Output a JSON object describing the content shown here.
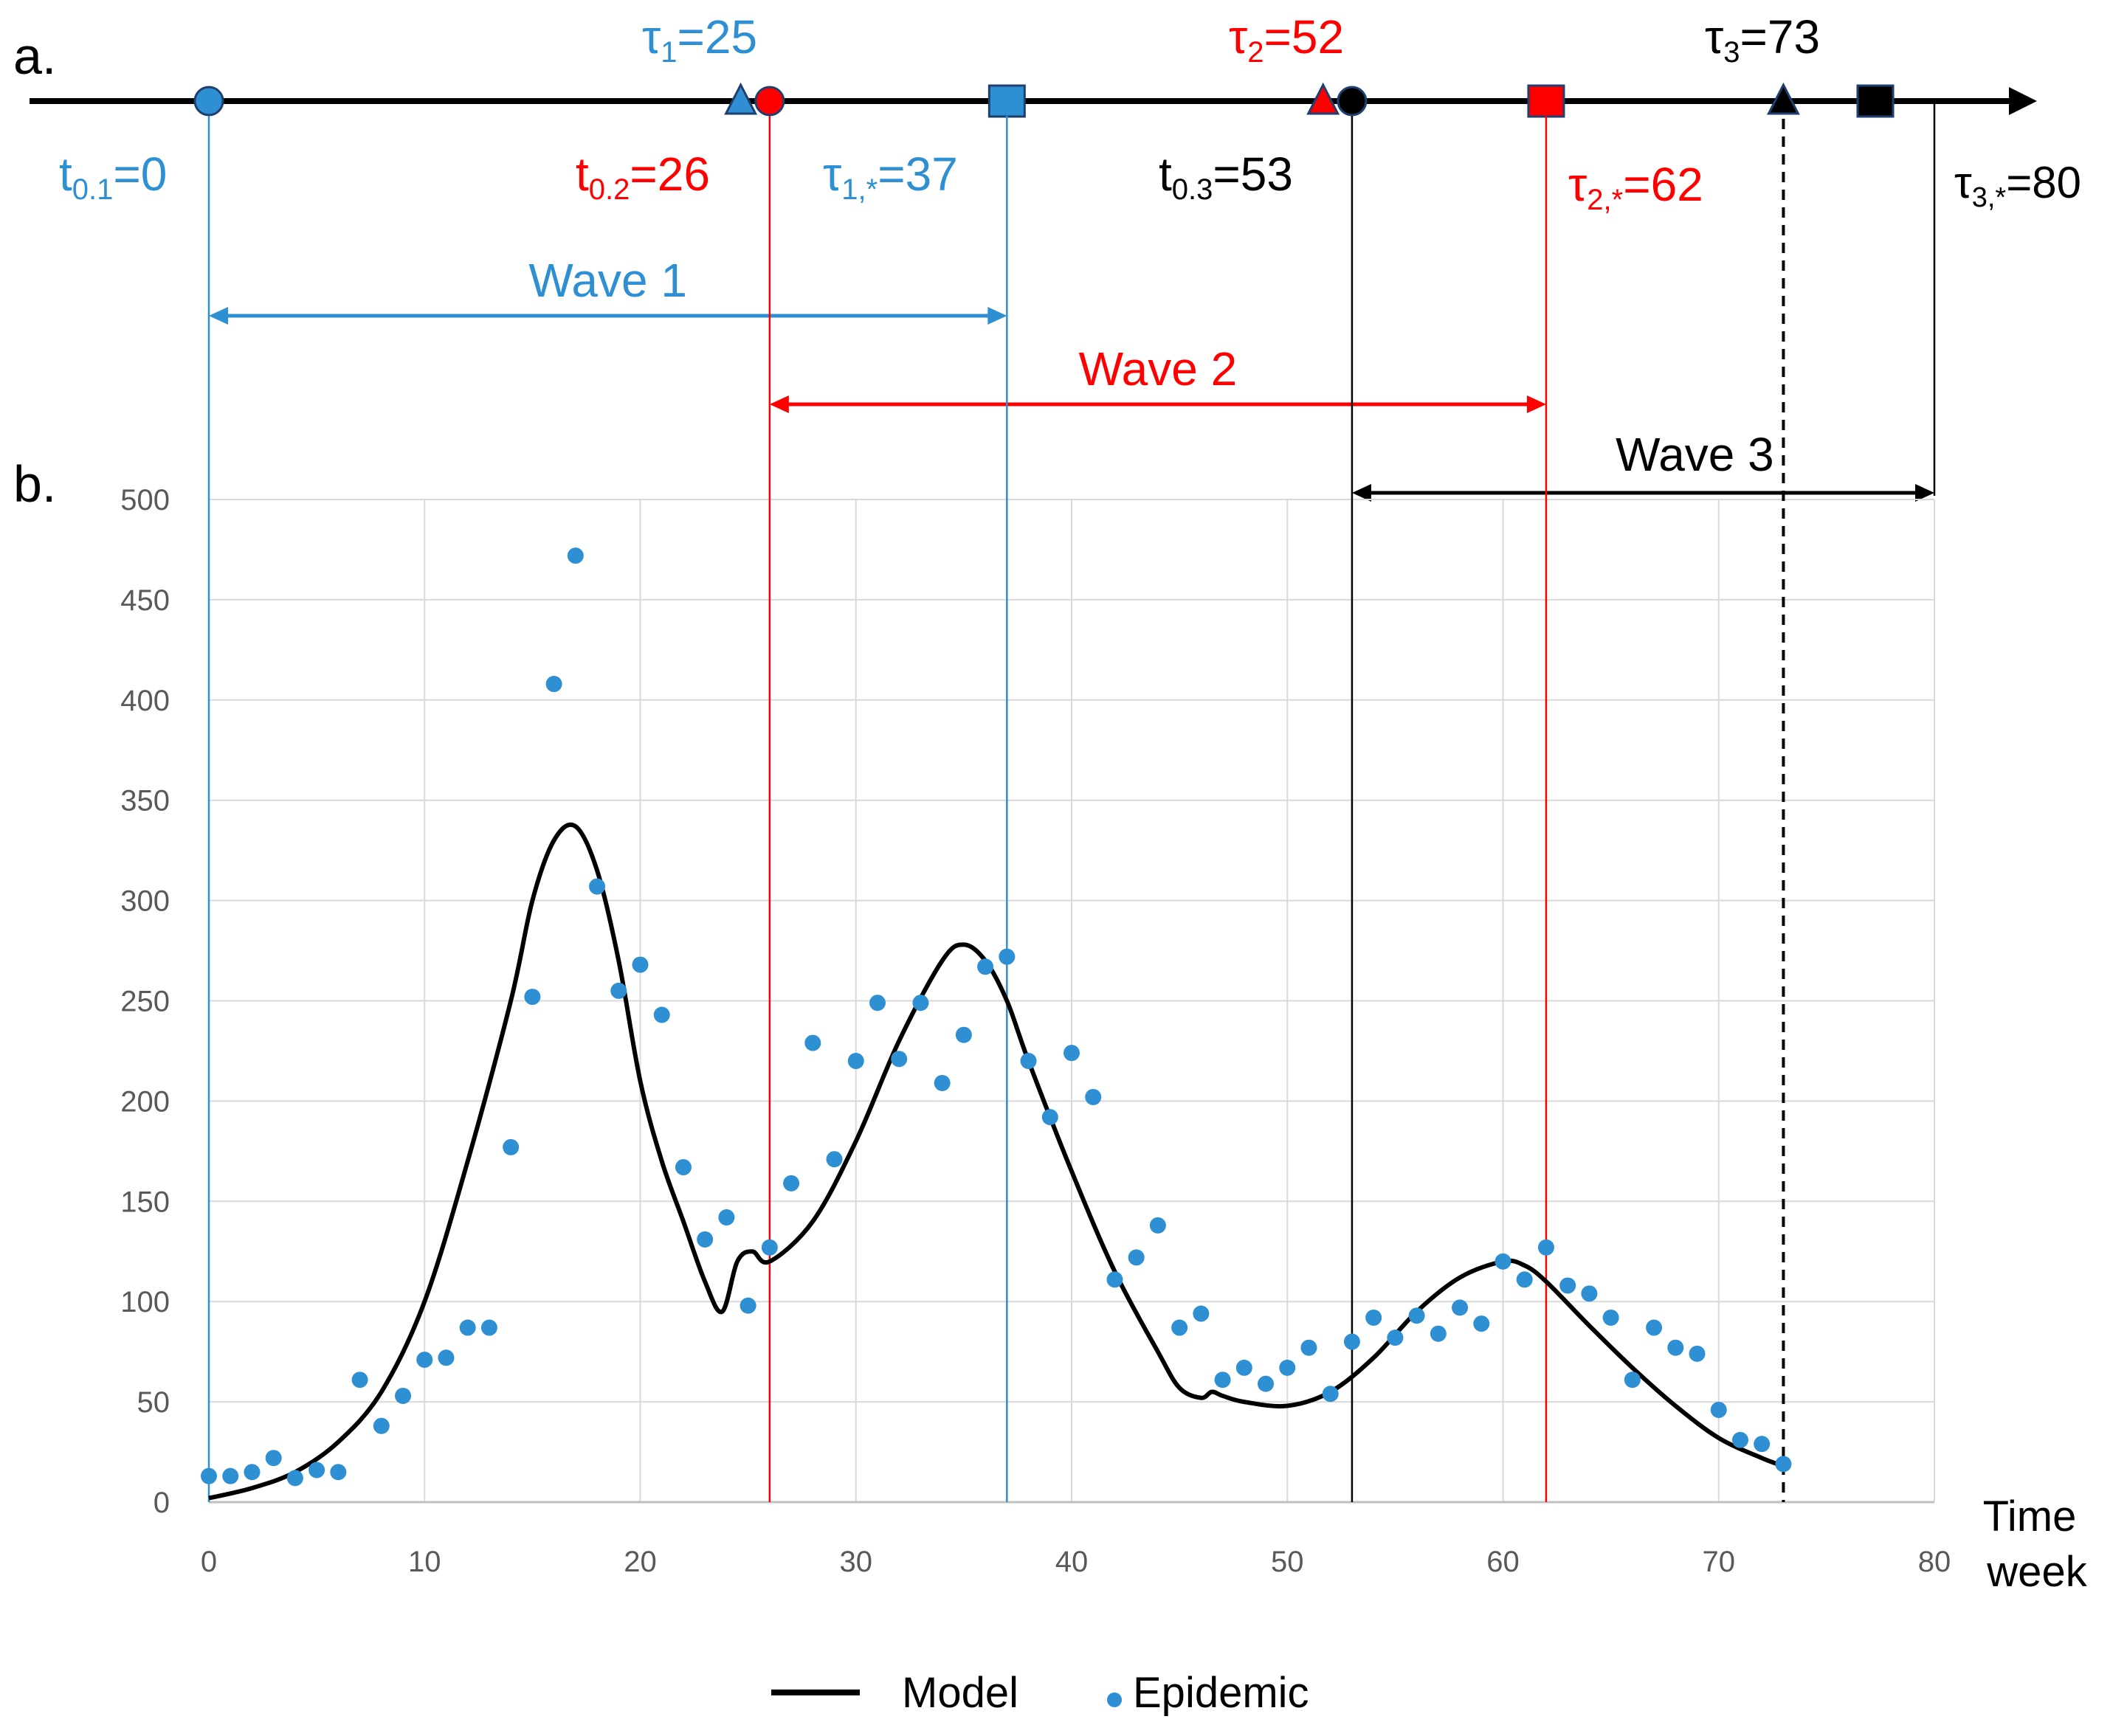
{
  "colors": {
    "blue": "#2E8FD3",
    "red": "#FF0000",
    "black": "#000000",
    "grid": "#D9D9D9",
    "tick_text": "#595959"
  },
  "panel_labels": {
    "a": "a.",
    "b": "b."
  },
  "timeline": {
    "markers": [
      {
        "name": "t-0-1",
        "shape": "circle",
        "t": 0,
        "color": "blue"
      },
      {
        "name": "tau-1",
        "shape": "triangle",
        "t": 25,
        "color": "blue"
      },
      {
        "name": "t-0-2",
        "shape": "circle",
        "t": 26,
        "color": "red"
      },
      {
        "name": "tau-1-star",
        "shape": "square",
        "t": 37,
        "color": "blue"
      },
      {
        "name": "tau-2",
        "shape": "triangle",
        "t": 52,
        "color": "red"
      },
      {
        "name": "t-0-3",
        "shape": "circle",
        "t": 53,
        "color": "black"
      },
      {
        "name": "tau-2-star",
        "shape": "square",
        "t": 62,
        "color": "red"
      },
      {
        "name": "tau-3",
        "shape": "triangle",
        "t": 73,
        "color": "black"
      },
      {
        "name": "tau-3-star",
        "shape": "square",
        "t": 80,
        "color": "black"
      }
    ],
    "labels": {
      "tau1": {
        "sym": "τ",
        "sub": "1",
        "val": "=25"
      },
      "tau2": {
        "sym": "τ",
        "sub": "2",
        "val": "=52"
      },
      "tau3": {
        "sym": "τ",
        "sub": "3",
        "val": "=73"
      },
      "t01": {
        "sym": "t",
        "sub": "0.1",
        "val": "=0"
      },
      "t02": {
        "sym": "t",
        "sub": "0.2",
        "val": "=26"
      },
      "t03": {
        "sym": "t",
        "sub": "0.3",
        "val": "=53"
      },
      "tau1s": {
        "sym": "τ",
        "sub": "1,*",
        "val": "=37"
      },
      "tau2s": {
        "sym": "τ",
        "sub": "2,*",
        "val": "=62"
      },
      "tau3s": {
        "sym": "τ",
        "sub": "3,*",
        "val": "=80"
      }
    },
    "waves": [
      {
        "name": "wave-1",
        "label": "Wave 1",
        "start": 0,
        "end": 37,
        "color": "blue"
      },
      {
        "name": "wave-2",
        "label": "Wave 2",
        "start": 26,
        "end": 62,
        "color": "red"
      },
      {
        "name": "wave-3",
        "label": "Wave 3",
        "start": 53,
        "end": 80,
        "color": "black"
      }
    ]
  },
  "chart_data": {
    "type": "scatter",
    "title": "",
    "xlabel": "Time week",
    "xlabel_lines": [
      "Time",
      "week"
    ],
    "ylabel": "",
    "xlim": [
      0,
      80
    ],
    "ylim": [
      0,
      500
    ],
    "xticks": [
      0,
      10,
      20,
      30,
      40,
      50,
      60,
      70,
      80
    ],
    "yticks": [
      0,
      50,
      100,
      150,
      200,
      250,
      300,
      350,
      400,
      450,
      500
    ],
    "grid": true,
    "legend_position": "bottom-center",
    "legend": {
      "model": "Model",
      "epidemic": "Epidemic"
    },
    "vertical_lines": [
      {
        "x": 0,
        "color": "blue",
        "style": "solid"
      },
      {
        "x": 26,
        "color": "red",
        "style": "solid"
      },
      {
        "x": 37,
        "color": "blue",
        "style": "solid"
      },
      {
        "x": 53,
        "color": "black",
        "style": "solid"
      },
      {
        "x": 62,
        "color": "red",
        "style": "solid"
      },
      {
        "x": 73,
        "color": "black",
        "style": "dashed"
      }
    ],
    "series": [
      {
        "name": "Epidemic",
        "kind": "points",
        "x": [
          0,
          1,
          2,
          3,
          4,
          5,
          6,
          7,
          8,
          9,
          10,
          11,
          12,
          13,
          14,
          15,
          16,
          17,
          18,
          19,
          20,
          21,
          22,
          23,
          24,
          25,
          26,
          27,
          28,
          29,
          30,
          31,
          32,
          33,
          34,
          35,
          36,
          37,
          38,
          39,
          40,
          41,
          42,
          43,
          44,
          45,
          46,
          47,
          48,
          49,
          50,
          51,
          52,
          53,
          54,
          55,
          56,
          57,
          58,
          59,
          60,
          61,
          62,
          63,
          64,
          65,
          66,
          67,
          68,
          69,
          70,
          71,
          72,
          73
        ],
        "y": [
          13,
          13,
          15,
          22,
          12,
          16,
          15,
          61,
          38,
          53,
          71,
          72,
          87,
          87,
          177,
          252,
          408,
          472,
          307,
          255,
          268,
          243,
          167,
          131,
          142,
          98,
          127,
          159,
          229,
          171,
          220,
          249,
          221,
          249,
          209,
          233,
          267,
          272,
          220,
          192,
          224,
          202,
          111,
          122,
          138,
          87,
          94,
          61,
          67,
          59,
          67,
          77,
          54,
          80,
          92,
          82,
          93,
          84,
          97,
          89,
          120,
          111,
          127,
          108,
          104,
          92,
          61,
          87,
          77,
          74,
          46,
          31,
          29,
          19
        ]
      },
      {
        "name": "Model",
        "kind": "line",
        "x": [
          0,
          2,
          4,
          6,
          8,
          10,
          12,
          14,
          15,
          16,
          17,
          18,
          19,
          20,
          21,
          22,
          23,
          23.8,
          24.5,
          25.2,
          26,
          28,
          30,
          32,
          34,
          35,
          36,
          37,
          38,
          40,
          42,
          44,
          45,
          46,
          46.5,
          47,
          48,
          50,
          52,
          54,
          56,
          58,
          60,
          61,
          62,
          64,
          66,
          68,
          70,
          72,
          73
        ],
        "y": [
          2,
          7,
          15,
          30,
          55,
          100,
          170,
          250,
          300,
          330,
          337,
          315,
          270,
          210,
          170,
          140,
          110,
          95,
          120,
          125,
          120,
          140,
          180,
          230,
          270,
          278,
          270,
          250,
          220,
          165,
          115,
          75,
          57,
          52,
          55,
          53,
          50,
          48,
          55,
          72,
          95,
          112,
          120,
          118,
          110,
          88,
          67,
          48,
          32,
          22,
          18
        ]
      }
    ]
  }
}
